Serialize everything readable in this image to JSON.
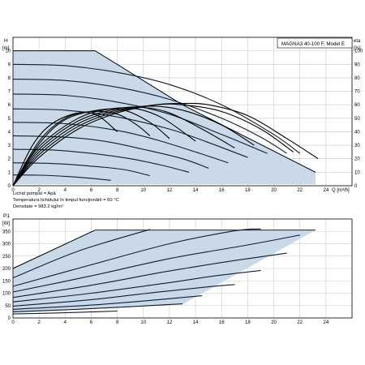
{
  "chart_data": [
    {
      "type": "line",
      "model_label": "MAGNA3 40-100 F, Model E",
      "ylabel_left": "H",
      "ylabel_left_unit": "[m]",
      "ylabel_right": "eta",
      "ylabel_right_unit": "[%]",
      "xlabel": "Q [m³/h]",
      "xlim": [
        0,
        26
      ],
      "ylim": [
        0,
        11
      ],
      "ylim_right": [
        0,
        110
      ],
      "xticks": [
        0,
        2,
        4,
        6,
        8,
        10,
        12,
        14,
        16,
        18,
        20,
        22,
        24
      ],
      "yticks": [
        0,
        1,
        2,
        3,
        4,
        5,
        6,
        7,
        8,
        9,
        10
      ],
      "yticks_right": [
        0,
        10,
        20,
        30,
        40,
        50,
        60,
        70,
        80,
        90,
        100
      ],
      "grid": true,
      "operating_area": {
        "x": [
          0,
          6.3,
          13,
          23.2,
          23.2,
          0
        ],
        "y": [
          10,
          10,
          6,
          1,
          0.1,
          0.1
        ]
      },
      "pump_curves": [
        {
          "x": [
            0,
            6.3,
            13,
            23.2
          ],
          "y": [
            10,
            10,
            6,
            1
          ]
        },
        {
          "x": [
            0,
            4,
            8,
            12,
            16,
            20,
            22
          ],
          "y": [
            9,
            8.9,
            8.4,
            7.5,
            6,
            3.8,
            2.4
          ]
        },
        {
          "x": [
            0,
            4,
            8,
            12,
            16,
            19,
            21
          ],
          "y": [
            7.9,
            7.8,
            7.3,
            6.4,
            5,
            3.6,
            2.4
          ]
        },
        {
          "x": [
            0,
            4,
            8,
            12,
            16,
            19.5
          ],
          "y": [
            6.8,
            6.7,
            6.2,
            5.3,
            3.8,
            2.4
          ]
        },
        {
          "x": [
            0,
            4,
            8,
            12,
            15,
            18
          ],
          "y": [
            5.7,
            5.6,
            5.1,
            4.2,
            3.2,
            2.1
          ]
        },
        {
          "x": [
            0,
            4,
            8,
            11,
            14,
            16.5
          ],
          "y": [
            4.7,
            4.6,
            4.1,
            3.4,
            2.5,
            1.7
          ]
        },
        {
          "x": [
            0,
            4,
            7,
            10,
            13,
            15
          ],
          "y": [
            3.7,
            3.6,
            3.3,
            2.7,
            2,
            1.3
          ]
        },
        {
          "x": [
            0,
            3,
            6,
            9,
            11.5,
            13.5
          ],
          "y": [
            2.7,
            2.65,
            2.4,
            2,
            1.5,
            1
          ]
        },
        {
          "x": [
            0,
            3,
            6,
            8.5,
            10.5
          ],
          "y": [
            1.7,
            1.65,
            1.45,
            1.2,
            0.75
          ]
        },
        {
          "x": [
            0,
            2,
            4,
            6,
            7.5
          ],
          "y": [
            0.8,
            0.78,
            0.7,
            0.55,
            0.4
          ]
        }
      ],
      "efficiency_curves": [
        {
          "x": [
            0,
            2,
            5,
            8,
            11,
            13,
            15,
            18,
            21,
            23.4
          ],
          "y": [
            0,
            21,
            42,
            54,
            60,
            61,
            60,
            52,
            35,
            20
          ]
        },
        {
          "x": [
            0,
            2,
            5,
            8,
            11,
            13,
            16,
            19,
            21.5
          ],
          "y": [
            0,
            23,
            44,
            55,
            60,
            60,
            55,
            42,
            25
          ]
        },
        {
          "x": [
            0,
            2,
            5,
            8,
            10.5,
            13,
            16,
            18.5
          ],
          "y": [
            0,
            25,
            46,
            56,
            59,
            56,
            45,
            30
          ]
        },
        {
          "x": [
            0,
            2,
            5,
            8,
            10,
            12,
            14.5,
            17
          ],
          "y": [
            0,
            27,
            48,
            57,
            58,
            54,
            42,
            28
          ]
        },
        {
          "x": [
            0,
            2,
            5,
            7.5,
            9.5,
            11.5,
            14
          ],
          "y": [
            0,
            29,
            50,
            57,
            57,
            50,
            33
          ]
        },
        {
          "x": [
            0,
            2,
            4,
            6.5,
            8.5,
            10.5,
            12
          ],
          "y": [
            0,
            31,
            49,
            56,
            56,
            47,
            35
          ]
        },
        {
          "x": [
            0,
            2,
            4,
            6,
            8,
            9.5,
            10.5
          ],
          "y": [
            0,
            33,
            50,
            55,
            53,
            45,
            37
          ]
        },
        {
          "x": [
            0,
            1.5,
            3,
            5,
            6.5,
            8
          ],
          "y": [
            0,
            30,
            46,
            54,
            52,
            40
          ]
        }
      ],
      "fluid_info": [
        "Lichid pompat = Apă",
        "Temperatura lichidului în timpul funcţionării = 60 °C",
        "Densitate = 983.2 kg/m³"
      ]
    },
    {
      "type": "line",
      "ylabel": "P1",
      "ylabel_unit": "[W]",
      "xlim": [
        0,
        26
      ],
      "ylim": [
        0,
        400
      ],
      "xticks": [
        0,
        2,
        4,
        6,
        8,
        10,
        12,
        14,
        16,
        18,
        20,
        22,
        24
      ],
      "yticks": [
        0,
        50,
        100,
        150,
        200,
        250,
        300,
        350
      ],
      "grid": true,
      "operating_area": {
        "x": [
          0,
          6.3,
          23.2,
          13,
          6,
          0
        ],
        "y": [
          200,
          355,
          355,
          55,
          38,
          20
        ]
      },
      "power_curves": [
        {
          "x": [
            0,
            6.3
          ],
          "y": [
            200,
            355
          ]
        },
        {
          "x": [
            0,
            5,
            10.5
          ],
          "y": [
            162,
            270,
            358
          ]
        },
        {
          "x": [
            0,
            6,
            12,
            17,
            19
          ],
          "y": [
            128,
            215,
            300,
            352,
            360
          ]
        },
        {
          "x": [
            0,
            6,
            12,
            18,
            22
          ],
          "y": [
            105,
            170,
            240,
            295,
            335
          ]
        },
        {
          "x": [
            0,
            6,
            12,
            17,
            21
          ],
          "y": [
            83,
            132,
            190,
            232,
            262
          ]
        },
        {
          "x": [
            0,
            6,
            12,
            15.5,
            19
          ],
          "y": [
            65,
            100,
            143,
            170,
            192
          ]
        },
        {
          "x": [
            0,
            6,
            11,
            15,
            17
          ],
          "y": [
            48,
            74,
            104,
            126,
            135
          ]
        },
        {
          "x": [
            0,
            6,
            11,
            14.5
          ],
          "y": [
            35,
            52,
            73,
            90
          ]
        },
        {
          "x": [
            0,
            5,
            9.5,
            13
          ],
          "y": [
            25,
            35,
            47,
            57
          ]
        },
        {
          "x": [
            0,
            4,
            8
          ],
          "y": [
            16,
            21,
            28
          ]
        }
      ]
    }
  ]
}
